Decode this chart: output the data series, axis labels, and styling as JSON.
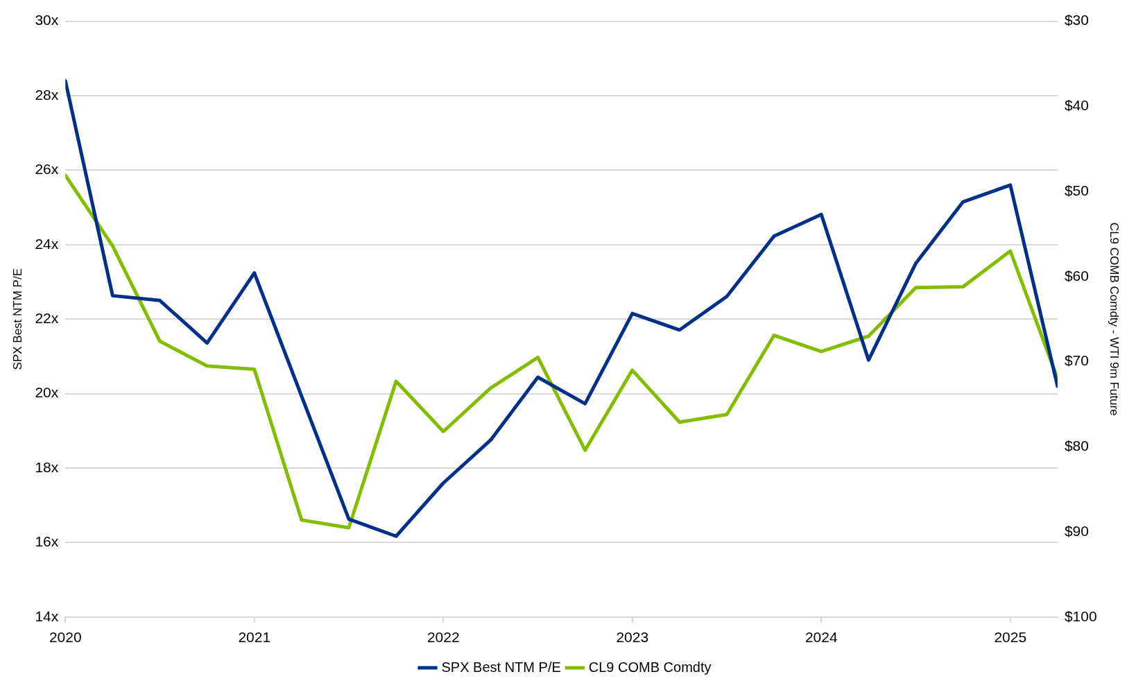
{
  "chart_data": {
    "type": "line",
    "ylabel": "SPX Best NTM P/E",
    "y2label": "CL9 COMB Comdty - WTI 9m Future",
    "x": [
      2020,
      2020.25,
      2020.5,
      2020.75,
      2021,
      2021.25,
      2021.5,
      2021.75,
      2022,
      2022.25,
      2022.5,
      2022.75,
      2023,
      2023.25,
      2023.5,
      2023.75,
      2024,
      2024.25,
      2024.5,
      2024.75,
      2025,
      2025.25
    ],
    "xlim": [
      2020,
      2025.25
    ],
    "xticks": [
      2020,
      2021,
      2022,
      2023,
      2024,
      2025
    ],
    "ylim": [
      14,
      30
    ],
    "yticks": [
      {
        "value": 14,
        "label": "14x"
      },
      {
        "value": 16,
        "label": "16x"
      },
      {
        "value": 18,
        "label": "18x"
      },
      {
        "value": 20,
        "label": "20x"
      },
      {
        "value": 22,
        "label": "22x"
      },
      {
        "value": 24,
        "label": "24x"
      },
      {
        "value": 26,
        "label": "26x"
      },
      {
        "value": 28,
        "label": "28x"
      },
      {
        "value": 30,
        "label": "30x"
      }
    ],
    "y2lim": [
      100,
      30
    ],
    "y2ticks": [
      {
        "value": 30,
        "label": "$30"
      },
      {
        "value": 40,
        "label": "$40"
      },
      {
        "value": 50,
        "label": "$50"
      },
      {
        "value": 60,
        "label": "$60"
      },
      {
        "value": 70,
        "label": "$70"
      },
      {
        "value": 80,
        "label": "$80"
      },
      {
        "value": 90,
        "label": "$90"
      },
      {
        "value": 100,
        "label": "$100"
      }
    ],
    "grid": "y",
    "legend": "bottom",
    "marker": "none",
    "line_style": "solid",
    "series": [
      {
        "name": "SPX Best NTM P/E",
        "color": "#003087",
        "values": [
          28.4,
          22.63,
          22.5,
          21.36,
          23.24,
          19.93,
          16.63,
          16.17,
          17.6,
          18.75,
          20.44,
          19.73,
          22.15,
          21.71,
          22.61,
          24.23,
          24.81,
          20.9,
          23.5,
          25.15,
          25.6,
          20.2
        ]
      },
      {
        "name": "CL9 COMB Comdty",
        "color": "#84bd00",
        "axis": "y2",
        "values": [
          48.1,
          56.4,
          67.6,
          70.5,
          70.9,
          88.6,
          89.5,
          72.3,
          78.2,
          73.1,
          69.5,
          80.4,
          71.0,
          77.1,
          76.2,
          66.9,
          68.8,
          67.0,
          61.3,
          61.2,
          57.0,
          72.0
        ]
      }
    ]
  }
}
